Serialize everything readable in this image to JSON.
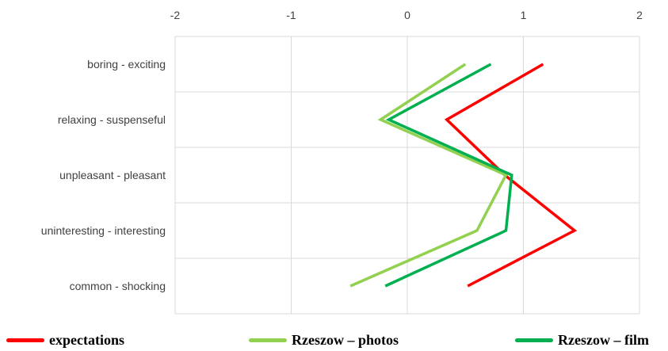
{
  "chart_data": {
    "type": "line",
    "orientation": "horizontal",
    "title": "",
    "xlabel": "",
    "ylabel": "",
    "xlim": [
      -2,
      2
    ],
    "x_ticks": [
      "-2",
      "-1",
      "0",
      "1",
      "2"
    ],
    "x_axis_position": "top",
    "grid": true,
    "categories": [
      "boring - exciting",
      "relaxing - suspenseful",
      "unpleasant - pleasant",
      "uninteresting - interesting",
      "common - shocking"
    ],
    "series": [
      {
        "name": "expectations",
        "color": "#ff0000",
        "values": [
          1.17,
          0.34,
          0.84,
          1.44,
          0.52
        ]
      },
      {
        "name": "Rzeszow – photos",
        "color": "#92d050",
        "values": [
          0.5,
          -0.23,
          0.85,
          0.6,
          -0.49
        ]
      },
      {
        "name": "Rzeszow – film",
        "color": "#00b050",
        "values": [
          0.72,
          -0.16,
          0.9,
          0.85,
          -0.19
        ]
      }
    ],
    "legend_position": "bottom"
  }
}
